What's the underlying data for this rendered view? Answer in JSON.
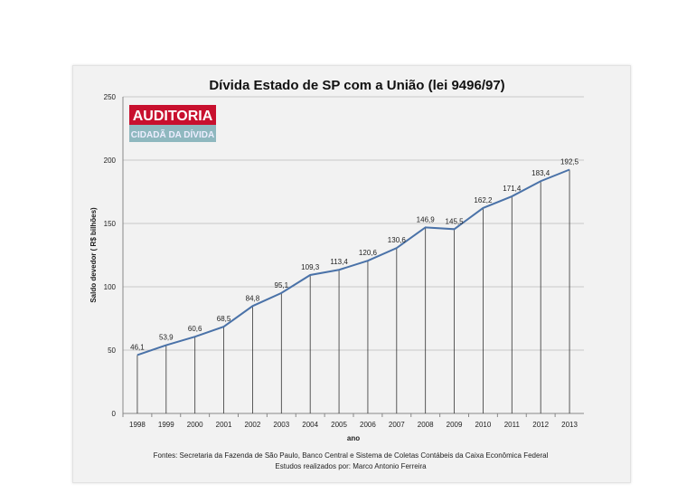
{
  "chart_data": {
    "type": "line",
    "title": "Dívida Estado de SP  com a  União (lei 9496/97)",
    "xlabel": "ano",
    "ylabel": "Saldo devedor ( R$ bilhões)",
    "categories": [
      "1998",
      "1999",
      "2000",
      "2001",
      "2002",
      "2003",
      "2004",
      "2005",
      "2006",
      "2007",
      "2008",
      "2009",
      "2010",
      "2011",
      "2012",
      "2013"
    ],
    "values": [
      46.1,
      53.9,
      60.6,
      68.5,
      84.8,
      95.1,
      109.3,
      113.4,
      120.6,
      130.6,
      146.9,
      145.5,
      162.2,
      171.4,
      183.4,
      192.5
    ],
    "data_labels": [
      "46,1",
      "53,9",
      "60,6",
      "68,5",
      "84,8",
      "95,1",
      "109,3",
      "113,4",
      "120,6",
      "130,6",
      "146,9",
      "145,5",
      "162,2",
      "171,4",
      "183,4",
      "192,5"
    ],
    "ylim": [
      0,
      250
    ],
    "yticks": [
      0,
      50,
      100,
      150,
      200,
      250
    ],
    "grid": true,
    "line_color": "#4a72a8"
  },
  "logo": {
    "line1": "AUDITORIA",
    "line2": "CIDADÃ DA DÍVIDA",
    "color1": "#c8102e",
    "color2": "#8fb8bf"
  },
  "footer": {
    "sources": "Fontes: Secretaria da Fazenda de São Paulo, Banco Central e Sistema de Coletas Contábeis da Caixa Econômica Federal",
    "author": "Estudos realizados por: Marco Antonio Ferreira"
  }
}
